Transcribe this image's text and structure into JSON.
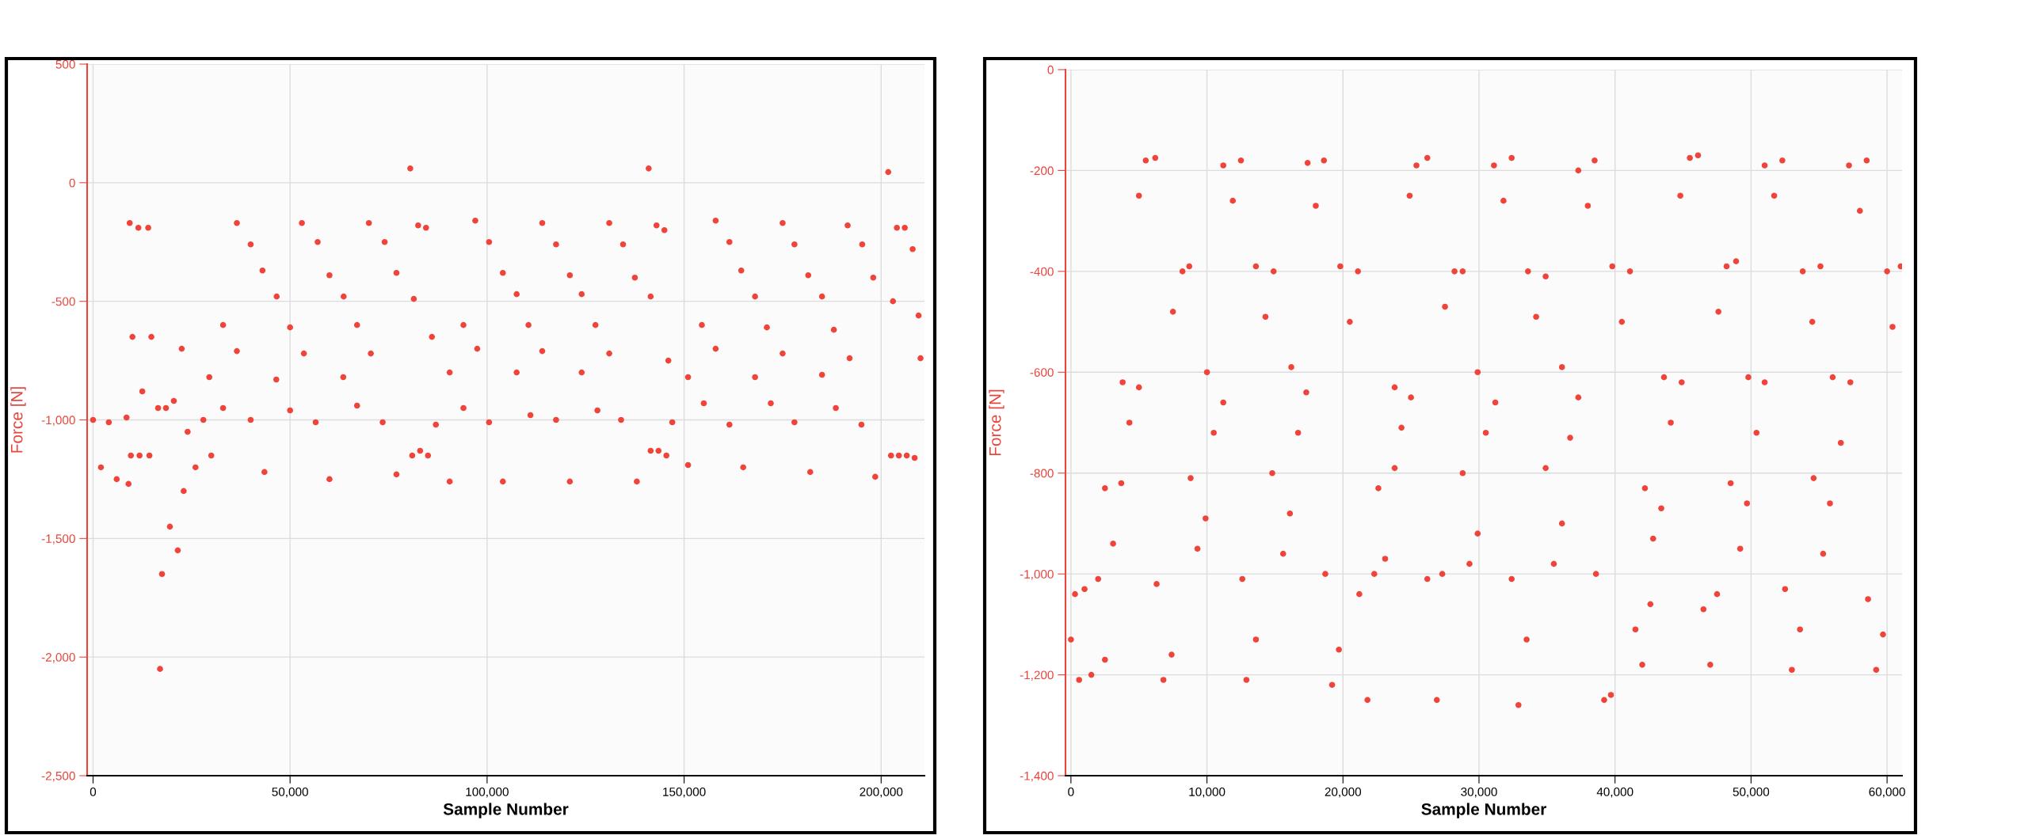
{
  "chart_data": [
    {
      "type": "scatter",
      "xlabel": "Sample Number",
      "ylabel": "Force [N]",
      "xlim": [
        -1500,
        211000
      ],
      "ylim": [
        -2500,
        500
      ],
      "xticks": [
        0,
        {
          "value": 50000,
          "label": "50,000"
        },
        {
          "value": 100000,
          "label": "100,000"
        },
        {
          "value": 150000,
          "label": "150,000"
        },
        {
          "value": 200000,
          "label": "200,000"
        }
      ],
      "yticks": [
        500,
        0,
        -500,
        {
          "value": -1000,
          "label": "-1,000"
        },
        {
          "value": -1500,
          "label": "-1,500"
        },
        {
          "value": -2000,
          "label": "-2,000"
        },
        {
          "value": -2500,
          "label": "-2,500"
        }
      ],
      "grid": true,
      "marker": "circle",
      "series": [
        {
          "color": "#f0443a",
          "x": [
            0,
            2000,
            4000,
            6000,
            8500,
            9000,
            9300,
            9600,
            10000,
            11500,
            11800,
            12500,
            14000,
            14300,
            14800,
            16500,
            17000,
            17500,
            18500,
            19500,
            20500,
            21500,
            22500,
            23000,
            24000,
            26000,
            28000,
            30000,
            29500,
            33000,
            33000,
            36500,
            36500,
            40000,
            40000,
            43500,
            43000,
            46600,
            46500,
            50000,
            50000,
            53500,
            53000,
            57000,
            56500,
            60000,
            60000,
            63600,
            63500,
            67000,
            67000,
            70500,
            70000,
            74000,
            73500,
            77000,
            77000,
            81400,
            80500,
            81000,
            82500,
            83000,
            84500,
            85000,
            86000,
            87000,
            90500,
            90500,
            94000,
            94000,
            97500,
            97000,
            100500,
            100500,
            104000,
            104000,
            107500,
            107500,
            111000,
            110500,
            114000,
            114000,
            117500,
            117500,
            121000,
            121000,
            124000,
            124000,
            128000,
            127500,
            131000,
            131000,
            134500,
            134000,
            138000,
            137500,
            141500,
            141000,
            141500,
            143000,
            143500,
            145000,
            145500,
            146000,
            147000,
            151000,
            151000,
            155000,
            154500,
            158000,
            158000,
            161500,
            161500,
            165000,
            164500,
            168000,
            168000,
            172000,
            171000,
            175000,
            175000,
            178000,
            178000,
            182000,
            181500,
            185000,
            185000,
            188500,
            188000,
            192000,
            191500,
            195200,
            195000,
            198500,
            198000,
            203000,
            201800,
            202500,
            204000,
            204500,
            206000,
            206500,
            208000,
            208500,
            209500,
            210000
          ],
          "values": [
            -1000,
            -1200,
            -1010,
            -1250,
            -990,
            -1270,
            -170,
            -1150,
            -650,
            -190,
            -1150,
            -880,
            -190,
            -1150,
            -650,
            -950,
            -2050,
            -1650,
            -950,
            -1450,
            -920,
            -1550,
            -700,
            -1300,
            -1050,
            -1200,
            -1000,
            -1150,
            -820,
            -950,
            -600,
            -710,
            -170,
            -260,
            -1000,
            -1220,
            -370,
            -480,
            -830,
            -960,
            -610,
            -720,
            -170,
            -250,
            -1010,
            -1250,
            -390,
            -480,
            -820,
            -940,
            -600,
            -720,
            -170,
            -250,
            -1010,
            -1230,
            -380,
            -490,
            60,
            -1150,
            -180,
            -1130,
            -190,
            -1150,
            -650,
            -1020,
            -1260,
            -800,
            -950,
            -600,
            -700,
            -160,
            -250,
            -1010,
            -1260,
            -380,
            -470,
            -800,
            -980,
            -600,
            -710,
            -170,
            -260,
            -1000,
            -1260,
            -390,
            -470,
            -800,
            -960,
            -600,
            -720,
            -170,
            -260,
            -1000,
            -1260,
            -400,
            -480,
            60,
            -1130,
            -180,
            -1130,
            -200,
            -1150,
            -750,
            -1010,
            -1190,
            -820,
            -930,
            -600,
            -700,
            -160,
            -250,
            -1020,
            -1200,
            -370,
            -480,
            -820,
            -930,
            -610,
            -720,
            -170,
            -260,
            -1010,
            -1220,
            -390,
            -480,
            -810,
            -950,
            -620,
            -740,
            -180,
            -260,
            -1020,
            -1240,
            -400,
            -500,
            45,
            -1150,
            -190,
            -1150,
            -190,
            -1150,
            -280,
            -1160,
            -560,
            -740
          ]
        }
      ]
    },
    {
      "type": "scatter",
      "xlabel": "Sample Number",
      "ylabel": "Force [N]",
      "xlim": [
        -400,
        61100
      ],
      "ylim": [
        -1400,
        0
      ],
      "xticks": [
        0,
        {
          "value": 10000,
          "label": "10,000"
        },
        {
          "value": 20000,
          "label": "20,000"
        },
        {
          "value": 30000,
          "label": "30,000"
        },
        {
          "value": 40000,
          "label": "40,000"
        },
        {
          "value": 50000,
          "label": "50,000"
        },
        {
          "value": 60000,
          "label": "60,000"
        }
      ],
      "yticks": [
        0,
        -200,
        -400,
        -600,
        -800,
        {
          "value": -1000,
          "label": "-1,000"
        },
        {
          "value": -1200,
          "label": "-1,200"
        },
        {
          "value": -1400,
          "label": "-1,400"
        }
      ],
      "grid": true,
      "marker": "circle",
      "series": [
        {
          "color": "#f0443a",
          "x": [
            0,
            300,
            600,
            1000,
            1500,
            2000,
            2500,
            2500,
            3100,
            3700,
            3800,
            4300,
            5000,
            5000,
            5500,
            6200,
            6300,
            6800,
            7400,
            7500,
            8200,
            8700,
            8800,
            9300,
            9900,
            10000,
            10500,
            11200,
            11200,
            11900,
            12500,
            12600,
            12900,
            13600,
            13600,
            14300,
            14900,
            14800,
            15600,
            16100,
            16200,
            16700,
            17300,
            17400,
            18000,
            18600,
            18700,
            19200,
            19700,
            19800,
            20500,
            21100,
            21200,
            21800,
            22300,
            22600,
            23100,
            23800,
            23800,
            24300,
            25000,
            24900,
            25400,
            26200,
            26200,
            26900,
            27300,
            27500,
            28200,
            28800,
            28800,
            29300,
            29900,
            29900,
            30500,
            31200,
            31100,
            31800,
            32400,
            32400,
            32900,
            33500,
            33600,
            34200,
            34900,
            34900,
            35500,
            36100,
            36100,
            36700,
            37300,
            37300,
            38000,
            38500,
            38600,
            39200,
            39700,
            39800,
            40500,
            41100,
            41500,
            42000,
            42600,
            42200,
            42800,
            43400,
            43600,
            44100,
            44900,
            44800,
            45500,
            46100,
            46500,
            47000,
            47500,
            47600,
            48200,
            48900,
            48500,
            49200,
            49700,
            49800,
            50400,
            51000,
            51000,
            51700,
            52300,
            52500,
            53000,
            53600,
            53800,
            54500,
            55100,
            54600,
            55300,
            55800,
            56000,
            56600,
            57300,
            57200,
            58000,
            58500,
            58600,
            59200,
            59700,
            60000,
            60400,
            61000
          ],
          "values": [
            -1130,
            -1040,
            -1210,
            -1030,
            -1200,
            -1010,
            -1170,
            -830,
            -940,
            -820,
            -620,
            -700,
            -630,
            -250,
            -180,
            -175,
            -1020,
            -1210,
            -1160,
            -480,
            -400,
            -390,
            -810,
            -950,
            -890,
            -600,
            -720,
            -660,
            -190,
            -260,
            -180,
            -1010,
            -1210,
            -1130,
            -390,
            -490,
            -400,
            -800,
            -960,
            -880,
            -590,
            -720,
            -640,
            -185,
            -270,
            -180,
            -1000,
            -1220,
            -1150,
            -390,
            -500,
            -400,
            -1040,
            -1250,
            -1000,
            -830,
            -970,
            -790,
            -630,
            -710,
            -650,
            -250,
            -190,
            -175,
            -1010,
            -1250,
            -1000,
            -470,
            -400,
            -400,
            -800,
            -980,
            -920,
            -600,
            -720,
            -660,
            -190,
            -260,
            -175,
            -1010,
            -1260,
            -1130,
            -400,
            -490,
            -410,
            -790,
            -980,
            -900,
            -590,
            -730,
            -650,
            -200,
            -270,
            -180,
            -1000,
            -1250,
            -1240,
            -390,
            -500,
            -400,
            -1110,
            -1180,
            -1060,
            -830,
            -930,
            -870,
            -610,
            -700,
            -620,
            -250,
            -175,
            -170,
            -1070,
            -1180,
            -1040,
            -480,
            -390,
            -380,
            -820,
            -950,
            -860,
            -610,
            -720,
            -620,
            -190,
            -250,
            -180,
            -1030,
            -1190,
            -1110,
            -400,
            -500,
            -390,
            -810,
            -960,
            -860,
            -610,
            -740,
            -620,
            -190,
            -280,
            -180,
            -1050,
            -1190,
            -1120,
            -400,
            -510,
            -390
          ]
        }
      ]
    }
  ]
}
